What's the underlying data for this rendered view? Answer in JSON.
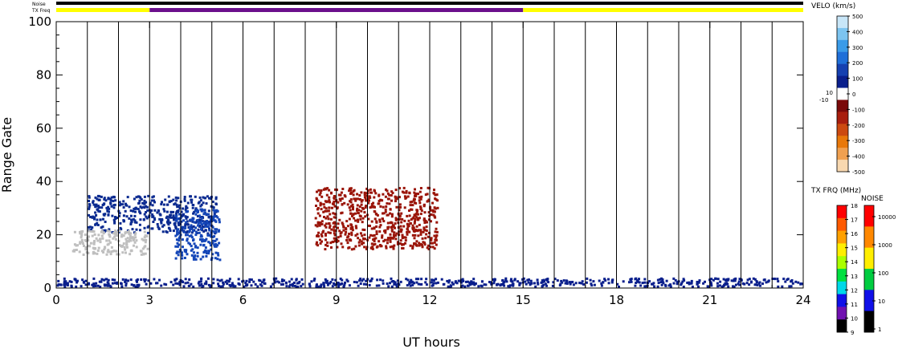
{
  "chart_data": {
    "type": "heatmap",
    "xlabel": "UT hours",
    "ylabel": "Range Gate",
    "xlim": [
      0,
      24
    ],
    "ylim": [
      0,
      100
    ],
    "x_ticks": [
      0,
      3,
      6,
      9,
      12,
      15,
      18,
      21,
      24
    ],
    "x_tick_labels": [
      "0",
      "3",
      "6",
      "9",
      "12",
      "15",
      "18",
      "21",
      "24"
    ],
    "y_ticks": [
      0,
      20,
      40,
      60,
      80,
      100
    ],
    "y_tick_labels": [
      "0",
      "20",
      "40",
      "60",
      "80",
      "100"
    ],
    "scan_boundaries_ut": [
      1,
      2,
      3,
      4,
      5,
      6,
      7,
      8,
      9,
      10,
      11,
      12,
      13,
      14,
      15,
      16,
      17,
      18,
      19,
      20,
      21,
      22,
      23
    ],
    "noise_bar": {
      "label": "Noise",
      "color": "#000000",
      "range": [
        0,
        24
      ]
    },
    "tx_freq_bar": {
      "label": "TX Freq",
      "segments": [
        {
          "start": 0,
          "end": 3,
          "color": "#ffff00"
        },
        {
          "start": 3,
          "end": 15,
          "color": "#6b0f8c"
        },
        {
          "start": 15,
          "end": 24,
          "color": "#ffff00"
        }
      ]
    },
    "velocity_scale": {
      "title": "VELO (km/s)",
      "tick_labels": [
        "500",
        "400",
        "300",
        "200",
        "100",
        "0",
        "-100",
        "-200",
        "-300",
        "-400",
        "-500"
      ],
      "extra_labels": [
        "10",
        "-10"
      ],
      "colors": [
        "#c8e6f8",
        "#7cc4f0",
        "#3a9be8",
        "#1f6fd8",
        "#1540b0",
        "#0a1f8c",
        "#ffffff",
        "#7a0a0a",
        "#a81e0e",
        "#cc4a10",
        "#e8780a",
        "#f0a050",
        "#f8d8b0"
      ]
    },
    "txfreq_scale": {
      "title": "TX FRQ (MHz)",
      "tick_labels": [
        "18",
        "17",
        "16",
        "15",
        "14",
        "13",
        "12",
        "11",
        "10",
        "9"
      ],
      "colors": [
        "#ff0000",
        "#ff5a00",
        "#ffa000",
        "#ffee00",
        "#aaff00",
        "#00e040",
        "#00d8e8",
        "#1010e8",
        "#7010b0",
        "#000000"
      ]
    },
    "noise_scale": {
      "title": "NOISE",
      "tick_labels": [
        "10000",
        "1000",
        "100",
        "10",
        "1"
      ],
      "colors": [
        "#ff0000",
        "#ff8800",
        "#ffee00",
        "#00cc40",
        "#1010e8",
        "#000000"
      ]
    },
    "ground_scatter_color": "#bfbfbf",
    "echo_regions": [
      {
        "label": "gate 20-35 blue band",
        "t0": 1.0,
        "t1": 5.2,
        "g0": 20,
        "g1": 35,
        "color": "#0a2a90"
      },
      {
        "label": "strong blue patch",
        "t0": 3.8,
        "t1": 5.3,
        "g0": 10,
        "g1": 30,
        "color": "#1446b8"
      },
      {
        "label": "red patch 9-13 UT",
        "t0": 8.3,
        "t1": 12.3,
        "g0": 14,
        "g1": 38,
        "color": "#9a1408"
      },
      {
        "label": "ground scatter 0-3 UT",
        "t0": 0.5,
        "t1": 3.0,
        "g0": 12,
        "g1": 22,
        "color": "#bfbfbf"
      },
      {
        "label": "blue near range",
        "t0": 0.0,
        "t1": 24.0,
        "g0": 0,
        "g1": 4,
        "color": "#0a1f8c"
      }
    ]
  }
}
